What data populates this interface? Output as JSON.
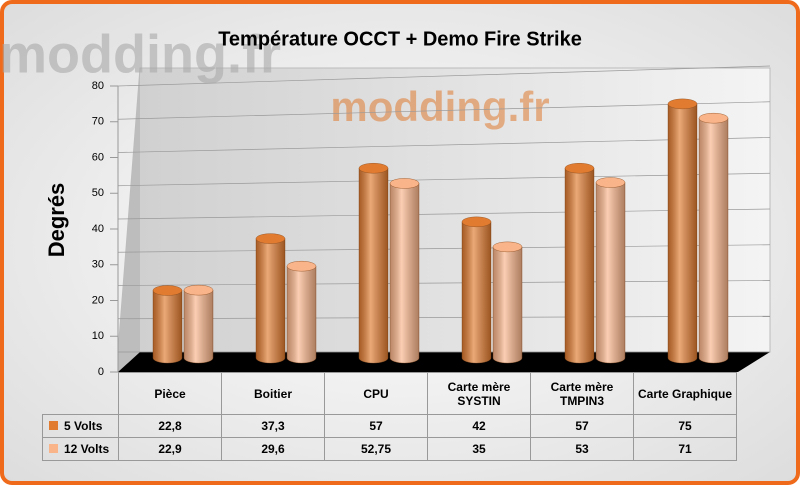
{
  "chart_data": {
    "type": "bar",
    "title": "Température OCCT + Demo Fire Strike",
    "y_label": "Degrés",
    "watermark": "modding.fr",
    "categories": [
      "Pièce",
      "Boitier",
      "CPU",
      "Carte mère SYSTIN",
      "Carte mère TMPIN3",
      "Carte Graphique"
    ],
    "series": [
      {
        "name": "5 Volts",
        "color": "#e07b30",
        "values": [
          22.8,
          37.3,
          57,
          42,
          57,
          75
        ],
        "value_labels": [
          "22,8",
          "37,3",
          "57",
          "42",
          "57",
          "75"
        ]
      },
      {
        "name": "12 Volts",
        "color": "#fab48a",
        "values": [
          22.9,
          29.6,
          52.75,
          35,
          53,
          71
        ],
        "value_labels": [
          "22,9",
          "29,6",
          "52,75",
          "35",
          "53",
          "71"
        ]
      }
    ],
    "ylim": [
      0,
      80
    ],
    "yticks": [
      0,
      10,
      20,
      30,
      40,
      50,
      60,
      70,
      80
    ],
    "grid": true
  }
}
